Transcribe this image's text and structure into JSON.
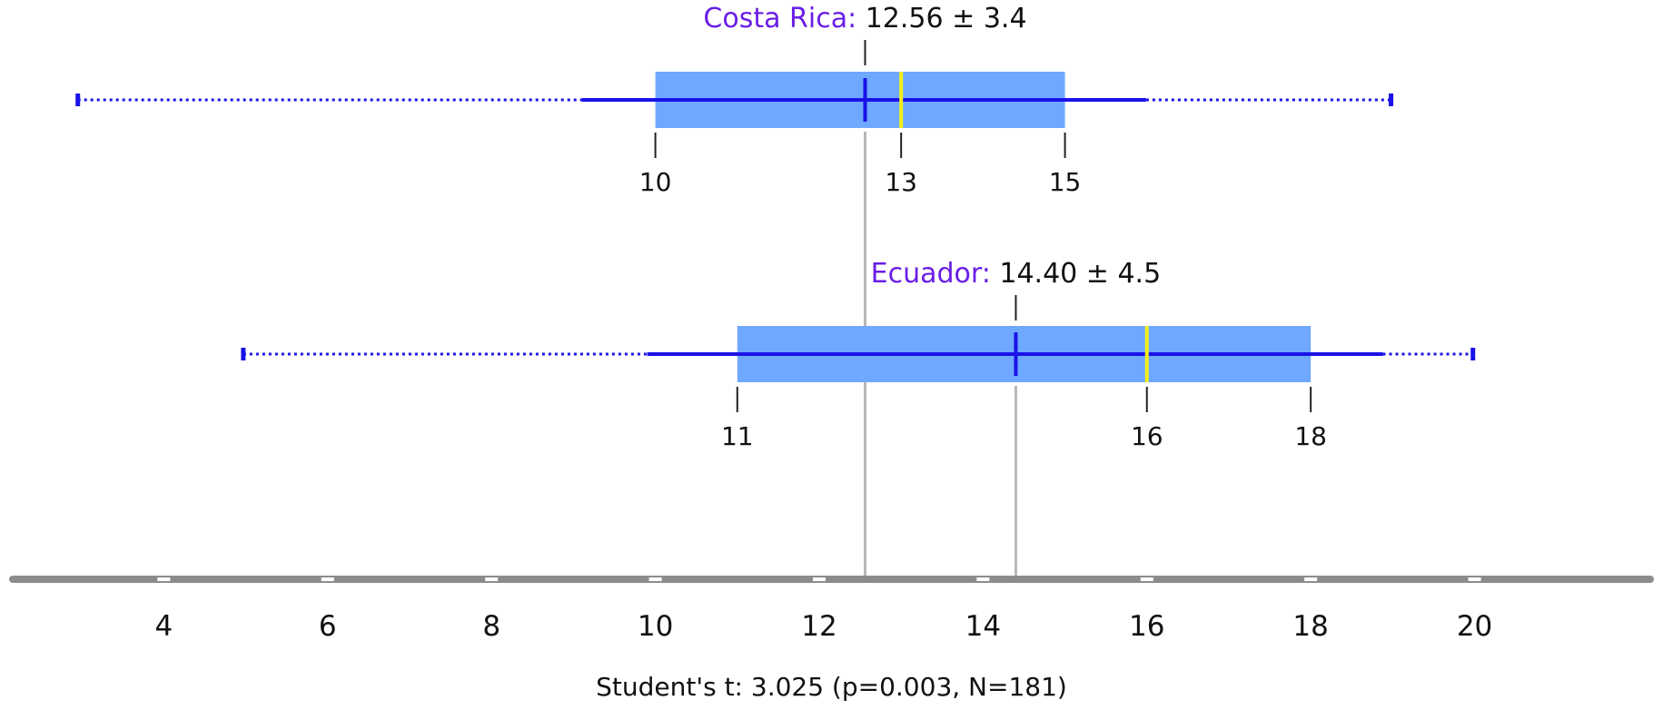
{
  "chart_data": {
    "type": "boxplot",
    "xlim": [
      2,
      22.3
    ],
    "x_ticks": [
      4,
      6,
      8,
      10,
      12,
      14,
      16,
      18,
      20
    ],
    "groups": [
      {
        "name": "Costa Rica:",
        "stat": "12.56 ± 3.4",
        "mean": 12.56,
        "q1": 10,
        "median": 13,
        "q3": 15,
        "whisker_low": 9.1,
        "whisker_high": 15.99,
        "min": 2.95,
        "max": 18.98,
        "box_labels": [
          "10",
          "13",
          "15"
        ]
      },
      {
        "name": "Ecuador:",
        "stat": "14.40 ± 4.5",
        "mean": 14.4,
        "q1": 11,
        "median": 16,
        "q3": 18,
        "whisker_low": 9.9,
        "whisker_high": 18.88,
        "min": 4.97,
        "max": 19.98,
        "box_labels": [
          "11",
          "16",
          "18"
        ]
      }
    ],
    "colors": {
      "box": "#6fa8ff",
      "whisker": "#1a12e8",
      "median": "#f2ef1b",
      "name_label": "#6a1ee6",
      "ref_line": "#b8b8b8",
      "axis": "#8c8c8c"
    }
  },
  "footer": "Student's t: 3.025 (p=0.003, N=181)"
}
